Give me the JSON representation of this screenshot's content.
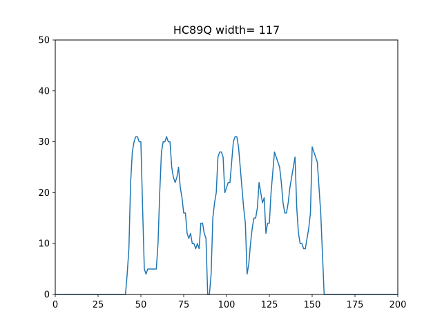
{
  "chart_data": {
    "type": "line",
    "title": "HC89Q width= 117",
    "xlabel": "",
    "ylabel": "",
    "xlim": [
      0,
      200
    ],
    "ylim": [
      0,
      50
    ],
    "xticks": [
      0,
      25,
      50,
      75,
      100,
      125,
      150,
      175,
      200
    ],
    "yticks": [
      0,
      10,
      20,
      30,
      40,
      50
    ],
    "grid": false,
    "series": [
      {
        "color": "#1f77b4",
        "x": [
          0,
          41,
          42,
          43,
          44,
          45,
          46,
          47,
          48,
          49,
          50,
          51,
          52,
          53,
          54,
          55,
          56,
          57,
          58,
          59,
          60,
          61,
          62,
          63,
          64,
          65,
          66,
          67,
          68,
          69,
          70,
          71,
          72,
          73,
          74,
          75,
          76,
          77,
          78,
          79,
          80,
          81,
          82,
          83,
          84,
          85,
          86,
          87,
          88,
          89,
          90,
          91,
          92,
          93,
          94,
          95,
          96,
          97,
          98,
          99,
          100,
          101,
          102,
          103,
          104,
          105,
          106,
          107,
          108,
          109,
          110,
          111,
          112,
          113,
          114,
          115,
          116,
          117,
          118,
          119,
          120,
          121,
          122,
          123,
          124,
          125,
          126,
          127,
          128,
          129,
          130,
          131,
          132,
          133,
          134,
          135,
          136,
          137,
          138,
          139,
          140,
          141,
          142,
          143,
          144,
          145,
          146,
          147,
          148,
          149,
          150,
          151,
          152,
          153,
          154,
          155,
          156,
          157,
          158,
          159,
          200
        ],
        "y": [
          0,
          0,
          4,
          9,
          22,
          28,
          30,
          31,
          31,
          30,
          30,
          17,
          5,
          4,
          5,
          5,
          5,
          5,
          5,
          5,
          10,
          20,
          28,
          30,
          30,
          31,
          30,
          30,
          25,
          23,
          22,
          23,
          25,
          21,
          19,
          16,
          16,
          12,
          11,
          12,
          10,
          10,
          9,
          10,
          9,
          14,
          14,
          12,
          11,
          0,
          0,
          4,
          15,
          18,
          20,
          27,
          28,
          28,
          27,
          20,
          21,
          22,
          22,
          26,
          30,
          31,
          31,
          29,
          25,
          21,
          17,
          14,
          4,
          6,
          10,
          13,
          15,
          15,
          17,
          22,
          20,
          18,
          19,
          12,
          14,
          14,
          20,
          24,
          28,
          27,
          26,
          25,
          22,
          18,
          16,
          16,
          18,
          21,
          23,
          25,
          27,
          17,
          12,
          10,
          10,
          9,
          9,
          11,
          13,
          16,
          29,
          28,
          27,
          26,
          21,
          16,
          8,
          0,
          0,
          0,
          0
        ]
      }
    ]
  }
}
